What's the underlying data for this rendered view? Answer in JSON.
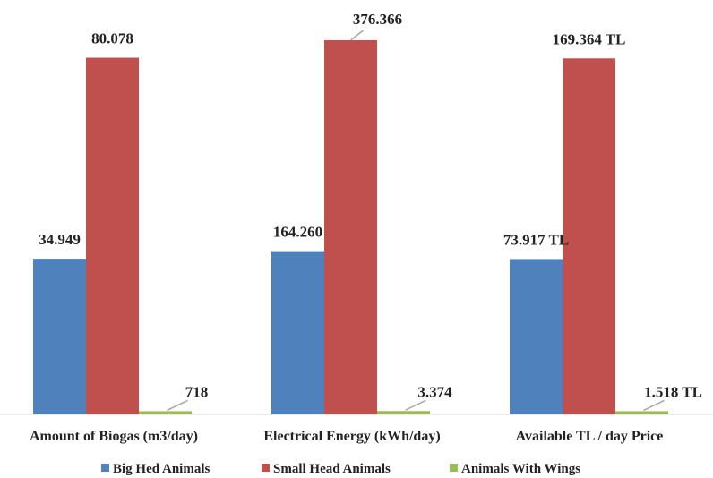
{
  "chart_data": {
    "type": "bar",
    "categories": [
      "Amount of Biogas  (m3/day)",
      "Electrical Energy (kWh/day)",
      "Available TL / day Price"
    ],
    "series": [
      {
        "name": "Big Hed Animals",
        "color": "#4f81bd",
        "values": [
          34949,
          164260,
          73917
        ],
        "labels": [
          "34.949",
          "164.260",
          "73.917 TL"
        ]
      },
      {
        "name": "Small Head Animals",
        "color": "#c0504d",
        "values": [
          80078,
          376366,
          169364
        ],
        "labels": [
          "80.078",
          "376.366",
          "169.364 TL"
        ]
      },
      {
        "name": "Animals With Wings",
        "color": "#9bbb59",
        "values": [
          718,
          3374,
          1518
        ],
        "labels": [
          "718",
          "3.374",
          "1.518 TL"
        ]
      }
    ],
    "group_max": [
      84000,
      376366,
      178000
    ],
    "legend_position": "bottom",
    "grid": false
  }
}
